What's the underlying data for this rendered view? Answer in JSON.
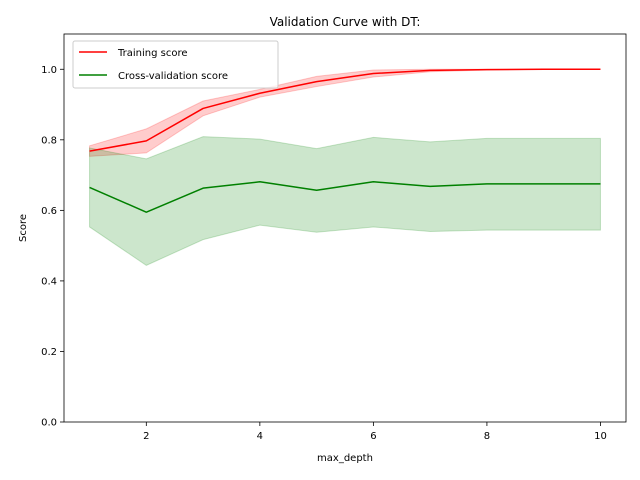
{
  "chart_data": {
    "type": "line",
    "title": "Validation Curve with DT:",
    "xlabel": "max_depth",
    "ylabel": "Score",
    "xlim": [
      0.55,
      10.45
    ],
    "ylim": [
      0.0,
      1.1
    ],
    "x_ticks": [
      2,
      4,
      6,
      8,
      10
    ],
    "y_ticks": [
      0.0,
      0.2,
      0.4,
      0.6,
      0.8,
      1.0
    ],
    "x_tick_labels": [
      "2",
      "4",
      "6",
      "8",
      "10"
    ],
    "y_tick_labels": [
      "0.0",
      "0.2",
      "0.4",
      "0.6",
      "0.8",
      "1.0"
    ],
    "legend_position": "top-left",
    "grid": false,
    "x": [
      1,
      2,
      3,
      4,
      5,
      6,
      7,
      8,
      9,
      10
    ],
    "series": [
      {
        "name": "Training score",
        "color": "#ff0000",
        "band_color": "#ff0000",
        "values": [
          0.768,
          0.797,
          0.889,
          0.932,
          0.965,
          0.988,
          0.997,
          0.999,
          1.0,
          1.0
        ],
        "lower": [
          0.753,
          0.763,
          0.868,
          0.921,
          0.951,
          0.978,
          0.993,
          0.998,
          1.0,
          1.0
        ],
        "upper": [
          0.783,
          0.831,
          0.91,
          0.943,
          0.98,
          0.998,
          1.0,
          1.0,
          1.0,
          1.0
        ]
      },
      {
        "name": "Cross-validation score",
        "color": "#008000",
        "band_color": "#008000",
        "values": [
          0.665,
          0.595,
          0.663,
          0.681,
          0.657,
          0.681,
          0.668,
          0.675,
          0.675,
          0.675
        ],
        "lower": [
          0.553,
          0.444,
          0.517,
          0.558,
          0.538,
          0.553,
          0.54,
          0.544,
          0.544,
          0.544
        ],
        "upper": [
          0.777,
          0.746,
          0.809,
          0.802,
          0.775,
          0.807,
          0.794,
          0.804,
          0.804,
          0.804
        ]
      }
    ]
  }
}
